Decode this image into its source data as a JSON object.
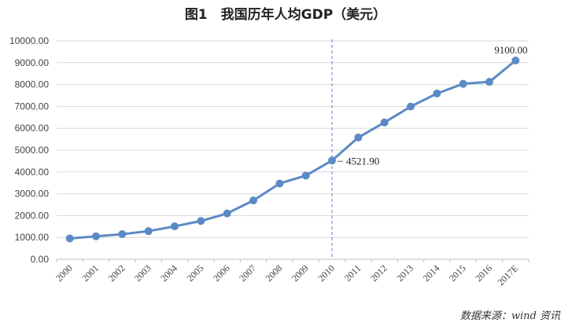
{
  "chart_data": {
    "type": "line",
    "title": "图1　我国历年人均GDP（美元）",
    "xlabel": "",
    "ylabel": "",
    "categories": [
      "2000",
      "2001",
      "2002",
      "2003",
      "2004",
      "2005",
      "2006",
      "2007",
      "2008",
      "2009",
      "2010",
      "2011",
      "2012",
      "2013",
      "2014",
      "2015",
      "2016",
      "2017E"
    ],
    "series": [
      {
        "values": [
          955,
          1053,
          1149,
          1289,
          1509,
          1753,
          2099,
          2693,
          3468,
          3832,
          4521.9,
          5574,
          6265,
          6992,
          7590,
          8033,
          8123,
          9100
        ]
      }
    ],
    "ylim": [
      0,
      10000
    ],
    "yticks": [
      "0.00",
      "1000.00",
      "2000.00",
      "3000.00",
      "4000.00",
      "5000.00",
      "6000.00",
      "7000.00",
      "8000.00",
      "9000.00",
      "10000.00"
    ],
    "grid": true,
    "line_color": "#5b8ac5",
    "grid_color": "#d9d9d9",
    "reference_line": {
      "category": "2010",
      "color": "#5b8ac5",
      "style": "dashed"
    },
    "annotations": [
      {
        "category": "2010",
        "text": "4521.90"
      },
      {
        "category": "2017E",
        "text": "9100.00"
      }
    ],
    "source": "数据来源：wind 资讯"
  }
}
